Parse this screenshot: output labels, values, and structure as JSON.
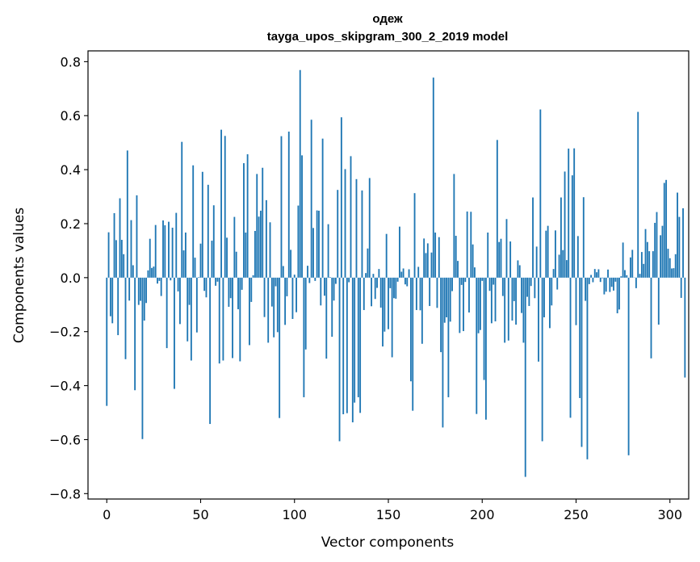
{
  "chart_data": {
    "type": "bar",
    "title": "одеж",
    "subtitle": "tayga_upos_skipgram_300_2_2019 model",
    "xlabel": "Vector components",
    "ylabel": "Components values",
    "xlim": [
      -10,
      310
    ],
    "ylim": [
      -0.82,
      0.84
    ],
    "xticks": [
      0,
      50,
      100,
      150,
      200,
      250,
      300
    ],
    "yticks": [
      -0.8,
      -0.6,
      -0.4,
      -0.2,
      0.0,
      0.2,
      0.4,
      0.6,
      0.8
    ],
    "ytick_labels": [
      "−0.8",
      "−0.6",
      "−0.4",
      "−0.2",
      "0.0",
      "0.2",
      "0.4",
      "0.6",
      "0.8"
    ],
    "bar_color": "#1f77b4",
    "values": [
      -0.475,
      0.168,
      -0.143,
      -0.169,
      0.239,
      0.139,
      -0.213,
      0.294,
      0.14,
      0.087,
      -0.302,
      0.471,
      -0.085,
      0.213,
      0.046,
      -0.417,
      0.305,
      -0.101,
      -0.086,
      -0.598,
      -0.159,
      -0.094,
      0.027,
      0.144,
      0.036,
      0.041,
      0.195,
      -0.022,
      -0.012,
      -0.068,
      0.212,
      0.194,
      -0.261,
      0.207,
      -0.01,
      0.185,
      -0.412,
      0.24,
      -0.051,
      -0.172,
      0.503,
      0.101,
      0.167,
      -0.236,
      -0.101,
      -0.307,
      0.416,
      0.074,
      -0.203,
      0.002,
      0.126,
      0.392,
      -0.049,
      -0.073,
      0.344,
      -0.542,
      0.137,
      0.268,
      -0.03,
      -0.015,
      -0.318,
      0.548,
      -0.307,
      0.525,
      0.148,
      -0.108,
      -0.076,
      -0.298,
      0.225,
      0.096,
      -0.117,
      -0.31,
      -0.045,
      0.424,
      0.167,
      0.457,
      -0.25,
      -0.09,
      0.009,
      0.173,
      0.384,
      0.226,
      0.248,
      0.407,
      -0.146,
      0.287,
      -0.241,
      0.205,
      -0.107,
      -0.221,
      -0.032,
      -0.202,
      -0.52,
      0.524,
      0.043,
      -0.175,
      -0.069,
      0.541,
      0.103,
      -0.153,
      0.011,
      -0.128,
      0.267,
      0.769,
      0.453,
      -0.443,
      -0.266,
      0.044,
      -0.02,
      0.585,
      0.184,
      -0.012,
      0.249,
      0.248,
      -0.103,
      0.515,
      -0.067,
      -0.3,
      0.198,
      0.002,
      -0.219,
      -0.085,
      -0.023,
      0.325,
      -0.606,
      0.594,
      -0.506,
      0.402,
      -0.502,
      -0.017,
      0.45,
      -0.536,
      -0.463,
      0.365,
      -0.443,
      -0.501,
      0.323,
      -0.12,
      0.017,
      0.108,
      0.369,
      -0.106,
      0.014,
      -0.079,
      -0.038,
      0.032,
      -0.111,
      -0.255,
      -0.2,
      0.162,
      -0.191,
      -0.039,
      -0.295,
      -0.076,
      -0.078,
      -0.015,
      0.189,
      0.022,
      0.034,
      -0.025,
      -0.032,
      0.031,
      -0.384,
      -0.493,
      0.313,
      -0.12,
      0.04,
      -0.121,
      -0.245,
      0.145,
      0.091,
      0.127,
      -0.105,
      0.093,
      0.741,
      0.167,
      -0.112,
      0.15,
      -0.276,
      -0.555,
      -0.167,
      -0.147,
      -0.443,
      -0.163,
      -0.05,
      0.384,
      0.155,
      0.062,
      -0.205,
      -0.027,
      -0.198,
      -0.016,
      0.245,
      -0.129,
      0.244,
      0.123,
      0.038,
      -0.505,
      -0.206,
      -0.194,
      -0.012,
      -0.379,
      -0.526,
      0.167,
      -0.049,
      -0.169,
      -0.026,
      -0.162,
      0.51,
      0.132,
      0.144,
      -0.068,
      -0.241,
      0.217,
      -0.233,
      0.134,
      -0.159,
      -0.087,
      -0.174,
      0.064,
      0.046,
      -0.131,
      -0.241,
      -0.738,
      -0.071,
      -0.105,
      -0.031,
      0.297,
      -0.076,
      0.115,
      -0.311,
      0.623,
      -0.606,
      -0.147,
      0.174,
      0.192,
      -0.187,
      -0.103,
      0.032,
      0.175,
      -0.044,
      0.085,
      0.297,
      0.102,
      0.393,
      0.065,
      0.478,
      -0.519,
      0.379,
      0.479,
      -0.176,
      0.154,
      -0.446,
      -0.627,
      0.298,
      -0.086,
      -0.673,
      -0.024,
      0.01,
      -0.017,
      0.032,
      0.02,
      0.031,
      -0.016,
      -0.002,
      -0.062,
      -0.052,
      0.03,
      -0.053,
      -0.034,
      -0.048,
      -0.015,
      -0.132,
      -0.118,
      0.005,
      0.13,
      0.028,
      0.009,
      -0.658,
      0.075,
      0.103,
      0.001,
      -0.039,
      0.614,
      0.014,
      0.095,
      0.051,
      0.18,
      0.132,
      0.098,
      -0.299,
      0.098,
      0.203,
      0.243,
      -0.174,
      0.157,
      0.192,
      0.351,
      0.362,
      0.107,
      0.072,
      0.034,
      0.035,
      0.087,
      0.315,
      0.225,
      -0.075,
      0.257,
      -0.37
    ]
  }
}
